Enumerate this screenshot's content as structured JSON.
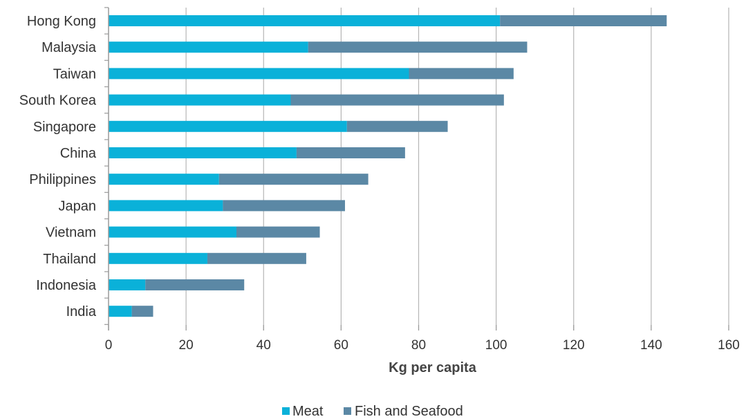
{
  "chart_data": {
    "type": "bar",
    "orientation": "horizontal",
    "stacked": true,
    "categories": [
      "Hong Kong",
      "Malaysia",
      "Taiwan",
      "South Korea",
      "Singapore",
      "China",
      "Philippines",
      "Japan",
      "Vietnam",
      "Thailand",
      "Indonesia",
      "India"
    ],
    "series": [
      {
        "name": "Meat",
        "color": "#0ab1d9",
        "values": [
          101,
          51.5,
          77.5,
          47,
          61.5,
          48.5,
          28.5,
          29.5,
          33,
          25.5,
          9.5,
          6
        ]
      },
      {
        "name": "Fish and Seafood",
        "color": "#5b88a5",
        "values": [
          43,
          56.5,
          27,
          55,
          26,
          28,
          38.5,
          31.5,
          21.5,
          25.5,
          25.5,
          5.5
        ]
      }
    ],
    "xlabel": "Kg per capita",
    "xlim": [
      0,
      160
    ],
    "xticks": [
      0,
      20,
      40,
      60,
      80,
      100,
      120,
      140,
      160
    ],
    "gridlines": "vertical",
    "legend_position": "bottom-center"
  }
}
